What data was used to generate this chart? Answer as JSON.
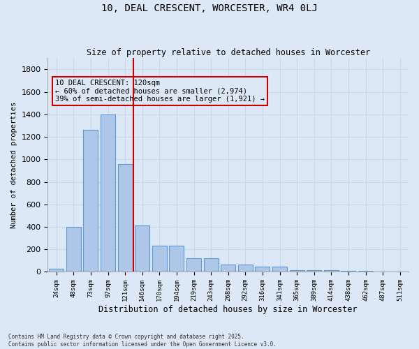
{
  "title": "10, DEAL CRESCENT, WORCESTER, WR4 0LJ",
  "subtitle": "Size of property relative to detached houses in Worcester",
  "xlabel": "Distribution of detached houses by size in Worcester",
  "ylabel": "Number of detached properties",
  "categories": [
    "24sqm",
    "48sqm",
    "73sqm",
    "97sqm",
    "121sqm",
    "146sqm",
    "170sqm",
    "194sqm",
    "219sqm",
    "243sqm",
    "268sqm",
    "292sqm",
    "316sqm",
    "341sqm",
    "365sqm",
    "389sqm",
    "414sqm",
    "438sqm",
    "462sqm",
    "487sqm",
    "511sqm"
  ],
  "values": [
    25,
    400,
    1260,
    1400,
    960,
    415,
    235,
    235,
    120,
    120,
    65,
    65,
    45,
    45,
    15,
    15,
    15,
    10,
    10,
    0,
    0
  ],
  "bar_color": "#aec6e8",
  "bar_edge_color": "#5b9bd5",
  "grid_color": "#c8d8e8",
  "background_color": "#dce8f5",
  "vline_color": "#cc0000",
  "annotation_text": "10 DEAL CRESCENT: 120sqm\n← 60% of detached houses are smaller (2,974)\n39% of semi-detached houses are larger (1,921) →",
  "annotation_box_color": "#cc0000",
  "footer": "Contains HM Land Registry data © Crown copyright and database right 2025.\nContains public sector information licensed under the Open Government Licence v3.0.",
  "ylim": [
    0,
    1900
  ],
  "figsize": [
    6.0,
    5.0
  ],
  "dpi": 100
}
